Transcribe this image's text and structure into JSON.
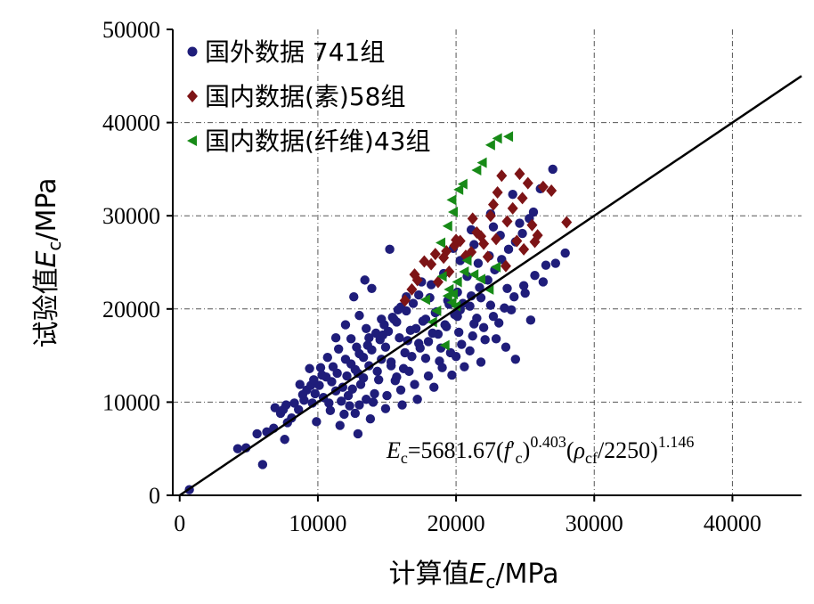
{
  "chart_data": {
    "type": "scatter",
    "xlabel": "计算值Ec/MPa",
    "ylabel": "试验值Ec/MPa",
    "xlim": [
      -500,
      45000
    ],
    "ylim": [
      0,
      50000
    ],
    "x_ticks": [
      "0",
      "10000",
      "20000",
      "30000",
      "40000"
    ],
    "y_ticks": [
      "0",
      "10000",
      "20000",
      "30000",
      "40000",
      "50000"
    ],
    "x_tick_values": [
      0,
      10000,
      20000,
      30000,
      40000
    ],
    "y_tick_values": [
      0,
      10000,
      20000,
      30000,
      40000,
      50000
    ],
    "grid": true,
    "legend_position": "top-left",
    "reference_line": {
      "x": [
        0,
        45000
      ],
      "y": [
        0,
        45000
      ]
    },
    "formula": {
      "E": "E",
      "c": "c",
      "eq": "=5681.67(",
      "f": "f",
      "prime": "′",
      "c2": "c",
      "close1": ")",
      "exp1": "0.403",
      "open2": "(",
      "rho": "ρ",
      "cf": "cf",
      "div": "/2250)",
      "exp2": "1.146"
    },
    "series": [
      {
        "name": "国外数据 741组",
        "marker": "circle",
        "color": "#1f1d7a",
        "points": [
          [
            700,
            600
          ],
          [
            6000,
            3300
          ],
          [
            4200,
            5000
          ],
          [
            4800,
            5100
          ],
          [
            5600,
            6600
          ],
          [
            6300,
            6800
          ],
          [
            6800,
            7200
          ],
          [
            7600,
            6000
          ],
          [
            7800,
            7800
          ],
          [
            8100,
            8300
          ],
          [
            7300,
            8800
          ],
          [
            6900,
            9400
          ],
          [
            7700,
            9700
          ],
          [
            8600,
            9200
          ],
          [
            9000,
            10200
          ],
          [
            9600,
            9900
          ],
          [
            9200,
            11300
          ],
          [
            10100,
            11800
          ],
          [
            10400,
            10500
          ],
          [
            11000,
            12200
          ],
          [
            11400,
            13100
          ],
          [
            11800,
            11600
          ],
          [
            12100,
            12800
          ],
          [
            12400,
            14100
          ],
          [
            12700,
            13500
          ],
          [
            13000,
            15200
          ],
          [
            13300,
            14800
          ],
          [
            13600,
            16100
          ],
          [
            13900,
            15600
          ],
          [
            14200,
            17400
          ],
          [
            14500,
            16700
          ],
          [
            14800,
            18300
          ],
          [
            15100,
            17600
          ],
          [
            15400,
            19100
          ],
          [
            15700,
            18600
          ],
          [
            16000,
            20200
          ],
          [
            13400,
            23100
          ],
          [
            13900,
            22200
          ],
          [
            15200,
            26400
          ],
          [
            12600,
            21300
          ],
          [
            14100,
            10900
          ],
          [
            15600,
            12300
          ],
          [
            16200,
            13600
          ],
          [
            16800,
            14900
          ],
          [
            17400,
            15800
          ],
          [
            18000,
            16500
          ],
          [
            18700,
            17300
          ],
          [
            19300,
            18100
          ],
          [
            19900,
            19400
          ],
          [
            20500,
            20600
          ],
          [
            21100,
            21400
          ],
          [
            21700,
            22300
          ],
          [
            22300,
            23100
          ],
          [
            22800,
            24200
          ],
          [
            23300,
            25300
          ],
          [
            23800,
            26400
          ],
          [
            24300,
            27200
          ],
          [
            24800,
            28100
          ],
          [
            27000,
            35000
          ],
          [
            26500,
            24700
          ],
          [
            27200,
            24900
          ],
          [
            27900,
            26000
          ],
          [
            25400,
            18800
          ],
          [
            24300,
            14600
          ],
          [
            23600,
            15900
          ],
          [
            22900,
            16800
          ],
          [
            21800,
            14300
          ],
          [
            20600,
            13800
          ],
          [
            19700,
            12900
          ],
          [
            18400,
            11600
          ],
          [
            17200,
            10300
          ],
          [
            16100,
            9700
          ],
          [
            14900,
            9300
          ],
          [
            13800,
            8200
          ],
          [
            12700,
            8800
          ],
          [
            11600,
            7500
          ],
          [
            12900,
            6600
          ],
          [
            10800,
            9900
          ],
          [
            9900,
            7900
          ],
          [
            13500,
            10300
          ],
          [
            12200,
            10700
          ],
          [
            11300,
            11200
          ],
          [
            10600,
            12700
          ],
          [
            9400,
            13600
          ],
          [
            8700,
            11900
          ],
          [
            9800,
            10900
          ],
          [
            10900,
            9100
          ],
          [
            11900,
            8700
          ],
          [
            12300,
            9600
          ],
          [
            13100,
            11900
          ],
          [
            14400,
            12400
          ],
          [
            15300,
            13900
          ],
          [
            16500,
            16600
          ],
          [
            17100,
            17900
          ],
          [
            17800,
            18900
          ],
          [
            18600,
            19700
          ],
          [
            19400,
            20900
          ],
          [
            20100,
            21800
          ],
          [
            20800,
            23500
          ],
          [
            21600,
            24900
          ],
          [
            22400,
            25700
          ],
          [
            23200,
            27900
          ],
          [
            24600,
            29200
          ],
          [
            25600,
            30400
          ],
          [
            26100,
            32900
          ],
          [
            24100,
            32300
          ],
          [
            22700,
            28800
          ],
          [
            21300,
            26900
          ],
          [
            20300,
            25200
          ],
          [
            19100,
            23800
          ],
          [
            18200,
            22600
          ],
          [
            17300,
            21500
          ],
          [
            16400,
            19800
          ],
          [
            15500,
            18900
          ],
          [
            14700,
            17200
          ],
          [
            13700,
            16900
          ],
          [
            12800,
            15900
          ],
          [
            12000,
            14600
          ],
          [
            11100,
            13800
          ],
          [
            10300,
            12900
          ],
          [
            9500,
            11800
          ],
          [
            8900,
            10800
          ],
          [
            8300,
            9900
          ],
          [
            7500,
            9200
          ],
          [
            18800,
            14400
          ],
          [
            19600,
            15300
          ],
          [
            20400,
            16200
          ],
          [
            21200,
            17100
          ],
          [
            22000,
            18000
          ],
          [
            22700,
            19200
          ],
          [
            23500,
            20100
          ],
          [
            24200,
            21300
          ],
          [
            24900,
            22500
          ],
          [
            25700,
            23600
          ],
          [
            26300,
            22900
          ],
          [
            25000,
            21700
          ],
          [
            24000,
            19900
          ],
          [
            23100,
            18500
          ],
          [
            22100,
            16700
          ],
          [
            21000,
            15500
          ],
          [
            20000,
            14900
          ],
          [
            19000,
            13700
          ],
          [
            18000,
            12800
          ],
          [
            17000,
            11900
          ],
          [
            16000,
            11300
          ],
          [
            15000,
            10700
          ],
          [
            14000,
            10000
          ],
          [
            13000,
            9700
          ],
          [
            12500,
            11400
          ],
          [
            13300,
            12600
          ],
          [
            14300,
            13300
          ],
          [
            15300,
            14300
          ],
          [
            16300,
            15300
          ],
          [
            17300,
            16300
          ],
          [
            18300,
            17400
          ],
          [
            19200,
            18300
          ],
          [
            20100,
            19200
          ],
          [
            21000,
            20300
          ],
          [
            21800,
            21200
          ],
          [
            14600,
            14600
          ],
          [
            13700,
            13900
          ],
          [
            12900,
            13100
          ],
          [
            14900,
            15900
          ],
          [
            15900,
            16900
          ],
          [
            16700,
            17700
          ],
          [
            17600,
            18700
          ],
          [
            18500,
            19600
          ],
          [
            19500,
            20500
          ],
          [
            20300,
            19900
          ],
          [
            21500,
            19000
          ],
          [
            22500,
            20400
          ],
          [
            23700,
            22200
          ],
          [
            18100,
            21200
          ],
          [
            16900,
            20600
          ],
          [
            15800,
            19900
          ],
          [
            14600,
            18900
          ],
          [
            13500,
            17900
          ],
          [
            12400,
            16800
          ],
          [
            11500,
            15700
          ],
          [
            10700,
            14800
          ],
          [
            10200,
            13700
          ],
          [
            9700,
            12400
          ],
          [
            11700,
            10100
          ],
          [
            15700,
            12700
          ],
          [
            16600,
            13300
          ],
          [
            17800,
            14700
          ],
          [
            18900,
            15800
          ],
          [
            20200,
            17500
          ],
          [
            21300,
            18400
          ],
          [
            12000,
            18300
          ],
          [
            13000,
            19300
          ],
          [
            11300,
            16900
          ],
          [
            16400,
            21300
          ],
          [
            17500,
            22900
          ],
          [
            19800,
            26500
          ],
          [
            21100,
            28500
          ],
          [
            22500,
            30200
          ],
          [
            25300,
            29700
          ]
        ]
      },
      {
        "name": "国内数据(素)58组",
        "marker": "diamond",
        "color": "#7d1416",
        "points": [
          [
            16300,
            20900
          ],
          [
            17200,
            23100
          ],
          [
            17700,
            25100
          ],
          [
            18200,
            24800
          ],
          [
            18700,
            22900
          ],
          [
            19100,
            25500
          ],
          [
            19500,
            24000
          ],
          [
            19900,
            26800
          ],
          [
            20300,
            27300
          ],
          [
            20700,
            25700
          ],
          [
            21100,
            26100
          ],
          [
            21500,
            28200
          ],
          [
            22000,
            27000
          ],
          [
            22500,
            30000
          ],
          [
            22900,
            27500
          ],
          [
            23300,
            34300
          ],
          [
            23700,
            29400
          ],
          [
            24100,
            30800
          ],
          [
            24400,
            27300
          ],
          [
            24800,
            31900
          ],
          [
            25200,
            33500
          ],
          [
            25500,
            29000
          ],
          [
            25900,
            27900
          ],
          [
            26300,
            33100
          ],
          [
            26900,
            32700
          ],
          [
            28000,
            29300
          ],
          [
            24600,
            34500
          ],
          [
            23000,
            32500
          ],
          [
            21800,
            27800
          ],
          [
            20000,
            27400
          ],
          [
            19300,
            26200
          ],
          [
            18500,
            25900
          ],
          [
            17000,
            23700
          ],
          [
            16800,
            22100
          ],
          [
            22300,
            25600
          ],
          [
            23600,
            24600
          ],
          [
            24900,
            26400
          ],
          [
            25700,
            27200
          ],
          [
            21200,
            29700
          ],
          [
            22700,
            31200
          ]
        ]
      },
      {
        "name": "国内数据(纤维)43组",
        "marker": "triangle-left",
        "color": "#178a17",
        "points": [
          [
            19400,
            28900
          ],
          [
            19800,
            30400
          ],
          [
            20200,
            32800
          ],
          [
            20500,
            33400
          ],
          [
            19700,
            31700
          ],
          [
            21500,
            34900
          ],
          [
            21900,
            35700
          ],
          [
            22500,
            37600
          ],
          [
            23000,
            38300
          ],
          [
            23800,
            38500
          ],
          [
            19500,
            22100
          ],
          [
            19800,
            21600
          ],
          [
            20100,
            22900
          ],
          [
            19700,
            20700
          ],
          [
            19200,
            16100
          ],
          [
            18600,
            19800
          ],
          [
            18300,
            18600
          ],
          [
            19000,
            23500
          ],
          [
            20600,
            24000
          ],
          [
            21300,
            23700
          ],
          [
            21800,
            23200
          ],
          [
            22400,
            22100
          ],
          [
            22900,
            24500
          ],
          [
            17800,
            21000
          ],
          [
            18900,
            27100
          ],
          [
            20800,
            25200
          ],
          [
            19400,
            21400
          ],
          [
            20000,
            20300
          ]
        ]
      }
    ]
  }
}
